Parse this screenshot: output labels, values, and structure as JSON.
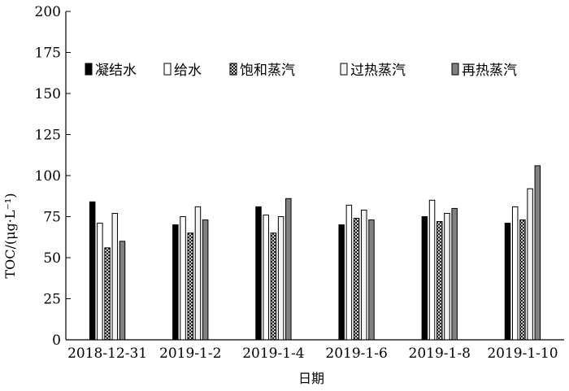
{
  "chart_data": {
    "type": "bar",
    "title": "",
    "xlabel": "日期",
    "ylabel": "TOC/(μg·L⁻¹)",
    "ylim": [
      0,
      200
    ],
    "yticks": [
      "0",
      "25",
      "50",
      "75",
      "100",
      "125",
      "150",
      "175",
      "200"
    ],
    "categories": [
      "2018-12-31",
      "2019-1-2",
      "2019-1-4",
      "2019-1-6",
      "2019-1-8",
      "2019-1-10"
    ],
    "grid": false,
    "legend_position": "top",
    "series": [
      {
        "name": "凝结水",
        "fill": "#000000",
        "pattern": "solid",
        "values": [
          84,
          70,
          81,
          70,
          75,
          71
        ]
      },
      {
        "name": "给水",
        "fill": "#ffffff",
        "pattern": "solid",
        "values": [
          71,
          75,
          76,
          82,
          85,
          81
        ]
      },
      {
        "name": "饱和蒸汽",
        "fill": "#ffffff",
        "pattern": "crosshatch",
        "values": [
          56,
          65,
          65,
          74,
          72,
          73
        ]
      },
      {
        "name": "过热蒸汽",
        "fill": "#f2f2f2",
        "pattern": "solid",
        "values": [
          77,
          81,
          75,
          79,
          77,
          92
        ]
      },
      {
        "name": "再热蒸汽",
        "fill": "#808080",
        "pattern": "solid",
        "values": [
          60,
          73,
          86,
          73,
          80,
          106
        ]
      }
    ]
  }
}
